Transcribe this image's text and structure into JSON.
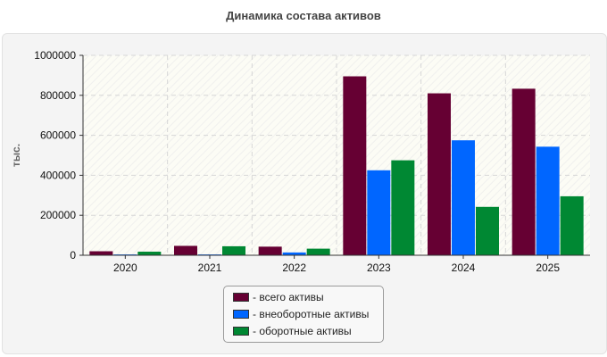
{
  "chart_data": {
    "type": "bar",
    "title": "Динамика состава активов",
    "ylabel": "тыс.",
    "xlabel": "",
    "categories": [
      "2020",
      "2021",
      "2022",
      "2023",
      "2024",
      "2025"
    ],
    "ylim": [
      0,
      1000000
    ],
    "yticks": [
      "0",
      "200000",
      "400000",
      "600000",
      "800000",
      "1000000"
    ],
    "grid": true,
    "legend_position": "bottom",
    "series": [
      {
        "name": "- всего активы",
        "color": "#660033",
        "values": [
          20000,
          47000,
          43000,
          895000,
          810000,
          833000
        ]
      },
      {
        "name": "- внеоборотные активы",
        "color": "#0066ff",
        "values": [
          4000,
          4000,
          14000,
          425000,
          575000,
          543000
        ]
      },
      {
        "name": "- оборотные активы",
        "color": "#008833",
        "values": [
          18000,
          45000,
          33000,
          475000,
          242000,
          295000
        ]
      }
    ]
  }
}
